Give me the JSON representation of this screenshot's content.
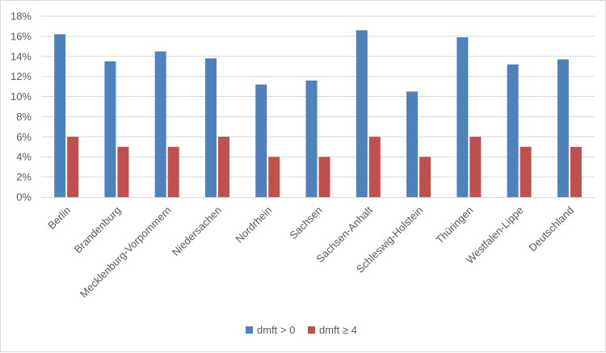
{
  "chart_data": {
    "type": "bar",
    "categories": [
      "Berlin",
      "Brandenburg",
      "Mecklenburg-Vorpommern",
      "Niedersachen",
      "Nordrhein",
      "Sachsen",
      "Sachsen-Anhalt",
      "Schleswig-Holstein",
      "Thüringen",
      "Westfalen-Lippe",
      "Deutschland"
    ],
    "series": [
      {
        "name": "dmft > 0",
        "color": "#4f81bd",
        "values": [
          16.2,
          13.5,
          14.5,
          13.8,
          11.2,
          11.6,
          16.6,
          10.5,
          15.9,
          13.2,
          13.7
        ]
      },
      {
        "name": "dmft ≥ 4",
        "color": "#c0504d",
        "values": [
          6,
          5,
          5,
          6,
          4,
          4,
          6,
          4,
          6,
          5,
          5
        ]
      }
    ],
    "y_ticks": [
      "0%",
      "2%",
      "4%",
      "6%",
      "8%",
      "10%",
      "12%",
      "14%",
      "16%",
      "18%"
    ],
    "ylim": [
      0,
      18
    ],
    "title": "",
    "xlabel": "",
    "ylabel": "",
    "grid": true,
    "legend_position": "bottom"
  }
}
